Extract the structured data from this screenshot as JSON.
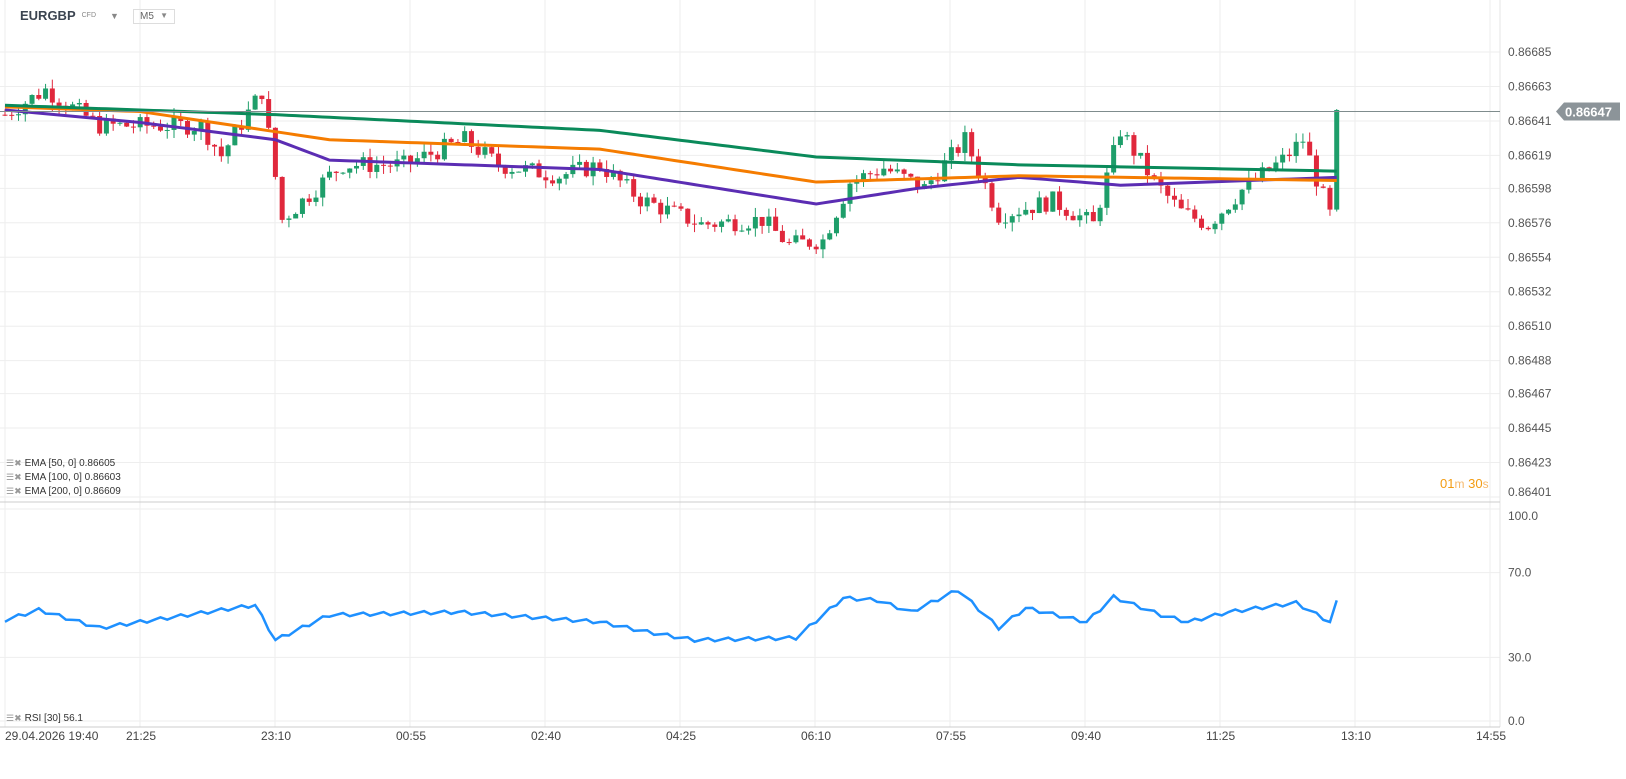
{
  "header": {
    "symbol": "EURGBP",
    "type": "CFD",
    "timeframe": "M5"
  },
  "price_badge": "0.86647",
  "countdown": {
    "min": "01",
    "m": "m",
    "sec": "30",
    "s": "s"
  },
  "legend": [
    {
      "label": "EMA [50, 0] 0.86605",
      "color": "#5b2db3"
    },
    {
      "label": "EMA [100, 0] 0.86603",
      "color": "#f57c00"
    },
    {
      "label": "EMA [200, 0] 0.86609",
      "color": "#0a8a5a"
    }
  ],
  "rsi_legend": "RSI [30] 56.1",
  "colors": {
    "up": "#1e9e6a",
    "down": "#e0283c",
    "rsi": "#1e90ff",
    "grid": "#eeeeee"
  },
  "chart_data": [
    {
      "type": "candlestick",
      "title": "EURGBP M5",
      "ylim": [
        0.86401,
        0.86685
      ],
      "yticks": [
        "0.86685",
        "0.86663",
        "0.86641",
        "0.86619",
        "0.86598",
        "0.86576",
        "0.86554",
        "0.86532",
        "0.86510",
        "0.86488",
        "0.86467",
        "0.86445",
        "0.86423",
        "0.86401"
      ],
      "xticks": [
        "29.04.2026 19:40",
        "21:25",
        "23:10",
        "00:55",
        "02:40",
        "04:25",
        "06:10",
        "07:55",
        "09:40",
        "11:25",
        "13:10",
        "14:55"
      ],
      "candle_count": 198,
      "close_anchors": [
        [
          0,
          0.86645
        ],
        [
          6,
          0.86661
        ],
        [
          14,
          0.86638
        ],
        [
          29,
          0.86638
        ],
        [
          32,
          0.86619
        ],
        [
          38,
          0.8666
        ],
        [
          41,
          0.86578
        ],
        [
          48,
          0.86606
        ],
        [
          50,
          0.86613
        ],
        [
          59,
          0.86613
        ],
        [
          68,
          0.86629
        ],
        [
          73,
          0.86613
        ],
        [
          82,
          0.86606
        ],
        [
          88,
          0.86613
        ],
        [
          94,
          0.86591
        ],
        [
          103,
          0.86575
        ],
        [
          112,
          0.86578
        ],
        [
          116,
          0.86562
        ],
        [
          121,
          0.86565
        ],
        [
          125,
          0.86602
        ],
        [
          130,
          0.86611
        ],
        [
          136,
          0.86598
        ],
        [
          142,
          0.86629
        ],
        [
          147,
          0.86581
        ],
        [
          155,
          0.8659
        ],
        [
          161,
          0.86575
        ],
        [
          165,
          0.86635
        ],
        [
          170,
          0.86602
        ],
        [
          174,
          0.86583
        ],
        [
          178,
          0.86575
        ],
        [
          183,
          0.86597
        ],
        [
          189,
          0.86616
        ],
        [
          192,
          0.86629
        ],
        [
          194,
          0.86604
        ],
        [
          196,
          0.86581
        ],
        [
          197,
          0.86648
        ]
      ],
      "series": [
        {
          "name": "EMA 50",
          "anchors": [
            [
              0,
              0.86648
            ],
            [
              20,
              0.8664
            ],
            [
              40,
              0.86629
            ],
            [
              48,
              0.86616
            ],
            [
              88,
              0.8661
            ],
            [
              120,
              0.86588
            ],
            [
              135,
              0.86598
            ],
            [
              150,
              0.86605
            ],
            [
              165,
              0.866
            ],
            [
              197,
              0.86605
            ]
          ]
        },
        {
          "name": "EMA 100",
          "anchors": [
            [
              0,
              0.8665
            ],
            [
              20,
              0.86647
            ],
            [
              48,
              0.86629
            ],
            [
              88,
              0.86623
            ],
            [
              120,
              0.86602
            ],
            [
              150,
              0.86606
            ],
            [
              197,
              0.86603
            ]
          ]
        },
        {
          "name": "EMA 200",
          "anchors": [
            [
              0,
              0.86651
            ],
            [
              40,
              0.86645
            ],
            [
              88,
              0.86635
            ],
            [
              120,
              0.86618
            ],
            [
              150,
              0.86613
            ],
            [
              197,
              0.86609
            ]
          ]
        }
      ]
    },
    {
      "type": "line",
      "title": "RSI [30]",
      "ylim": [
        0,
        100
      ],
      "yticks": [
        "100.0",
        "70.0",
        "30.0",
        "0.0"
      ],
      "series": [
        {
          "name": "RSI",
          "anchors": [
            [
              0,
              47.6
            ],
            [
              5,
              52.4
            ],
            [
              14,
              43.9
            ],
            [
              37,
              54.7
            ],
            [
              40,
              38.2
            ],
            [
              48,
              50
            ],
            [
              67,
              51.4
            ],
            [
              88,
              46.7
            ],
            [
              95,
              42
            ],
            [
              102,
              38.2
            ],
            [
              117,
              39.2
            ],
            [
              124,
              58
            ],
            [
              129,
              57
            ],
            [
              134,
              51.4
            ],
            [
              141,
              61.8
            ],
            [
              147,
              43.9
            ],
            [
              151,
              53.3
            ],
            [
              160,
              46.7
            ],
            [
              164,
              58.5
            ],
            [
              171,
              50
            ],
            [
              175,
              46.7
            ],
            [
              181,
              51.4
            ],
            [
              191,
              55.7
            ],
            [
              196,
              46.7
            ],
            [
              197,
              56.1
            ]
          ]
        }
      ]
    }
  ]
}
